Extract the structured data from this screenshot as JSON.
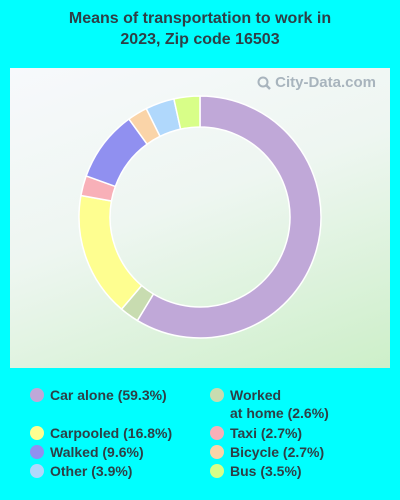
{
  "title_line1": "Means of transportation to work in",
  "title_line2": "2023, Zip code 16503",
  "watermark": "City-Data.com",
  "chart_data": {
    "type": "pie",
    "variant": "donut",
    "title": "Means of transportation to work in 2023, Zip code 16503",
    "series": [
      {
        "name": "Car alone",
        "value": 59.3,
        "label": "Car alone (59.3%)",
        "color": "#c0a8d8"
      },
      {
        "name": "Worked at home",
        "value": 2.6,
        "label": "Worked\nat home (2.6%)",
        "color": "#c8dcb0"
      },
      {
        "name": "Carpooled",
        "value": 16.8,
        "label": "Carpooled (16.8%)",
        "color": "#fefe90"
      },
      {
        "name": "Taxi",
        "value": 2.7,
        "label": "Taxi (2.7%)",
        "color": "#f8b0b8"
      },
      {
        "name": "Walked",
        "value": 9.6,
        "label": "Walked (9.6%)",
        "color": "#9090f0"
      },
      {
        "name": "Bicycle",
        "value": 2.7,
        "label": "Bicycle (2.7%)",
        "color": "#fad4a8"
      },
      {
        "name": "Other",
        "value": 3.9,
        "label": "Other (3.9%)",
        "color": "#b0d8fc"
      },
      {
        "name": "Bus",
        "value": 3.5,
        "label": "Bus (3.5%)",
        "color": "#d8fe88"
      }
    ],
    "legend_position": "bottom"
  }
}
